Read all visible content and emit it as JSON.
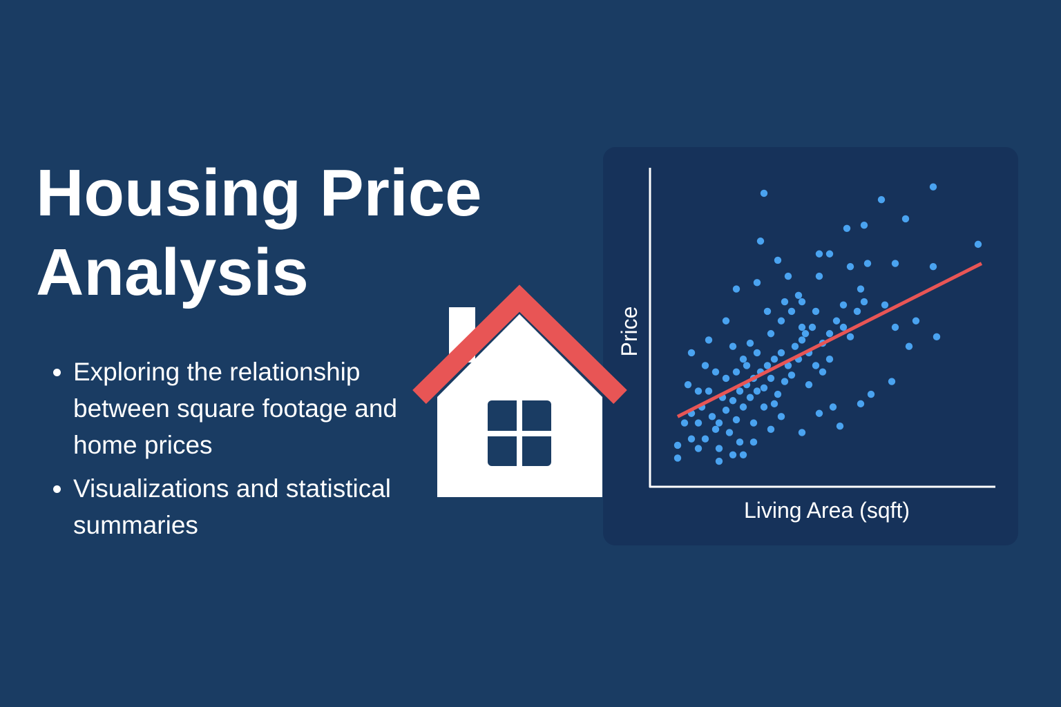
{
  "title": "Housing Price Analysis",
  "bullets": [
    "Exploring the relationship between square footage and home prices",
    "Visualizations and statistical summaries"
  ],
  "chart_data": {
    "type": "scatter",
    "xlabel": "Living Area (sqft)",
    "ylabel": "Price",
    "color": "#4aa3f0",
    "xlim": [
      0,
      100
    ],
    "ylim": [
      0,
      100
    ],
    "x": [
      33,
      82,
      67,
      74,
      62,
      57,
      32,
      95,
      52,
      49,
      37,
      63,
      71,
      82,
      58,
      40,
      31,
      49,
      25,
      61,
      77,
      83,
      71,
      75,
      70,
      64,
      61,
      53,
      49,
      55,
      8,
      8,
      20,
      27,
      14,
      44,
      35,
      38,
      11,
      22,
      17,
      12,
      68,
      56,
      44,
      15,
      18,
      20,
      22,
      24,
      26,
      28,
      21,
      19,
      23,
      25,
      27,
      29,
      30,
      32,
      34,
      31,
      33,
      35,
      36,
      38,
      40,
      42,
      44,
      39,
      37,
      41,
      43,
      45,
      47,
      17,
      14,
      12,
      16,
      26,
      30,
      33,
      36,
      46,
      48,
      50,
      52,
      54,
      56,
      58,
      60,
      62,
      28,
      25,
      22,
      35,
      38,
      41,
      44,
      10,
      12,
      20,
      24,
      30,
      46,
      50,
      52,
      48,
      43,
      39,
      34,
      29,
      31,
      27,
      24,
      19,
      16,
      14
    ],
    "y": [
      92,
      94,
      90,
      84,
      82,
      81,
      77,
      76,
      73,
      73,
      71,
      70,
      70,
      69,
      69,
      66,
      64,
      66,
      62,
      62,
      52,
      47,
      50,
      44,
      33,
      29,
      26,
      25,
      23,
      19,
      9,
      13,
      8,
      10,
      12,
      17,
      18,
      22,
      32,
      52,
      46,
      42,
      57,
      57,
      58,
      25,
      22,
      20,
      24,
      27,
      30,
      32,
      28,
      18,
      17,
      21,
      25,
      28,
      34,
      36,
      38,
      30,
      31,
      34,
      40,
      42,
      38,
      44,
      46,
      33,
      29,
      35,
      40,
      48,
      50,
      30,
      20,
      23,
      15,
      14,
      20,
      25,
      26,
      42,
      38,
      45,
      48,
      52,
      50,
      47,
      55,
      58,
      38,
      36,
      34,
      48,
      52,
      55,
      50,
      20,
      15,
      12,
      10,
      14,
      32,
      36,
      40,
      55,
      60,
      58,
      55,
      45,
      42,
      40,
      44,
      36,
      38,
      30
    ],
    "trend_line": {
      "x": [
        8,
        96
      ],
      "y": [
        22,
        70
      ],
      "color": "#e85555"
    }
  }
}
